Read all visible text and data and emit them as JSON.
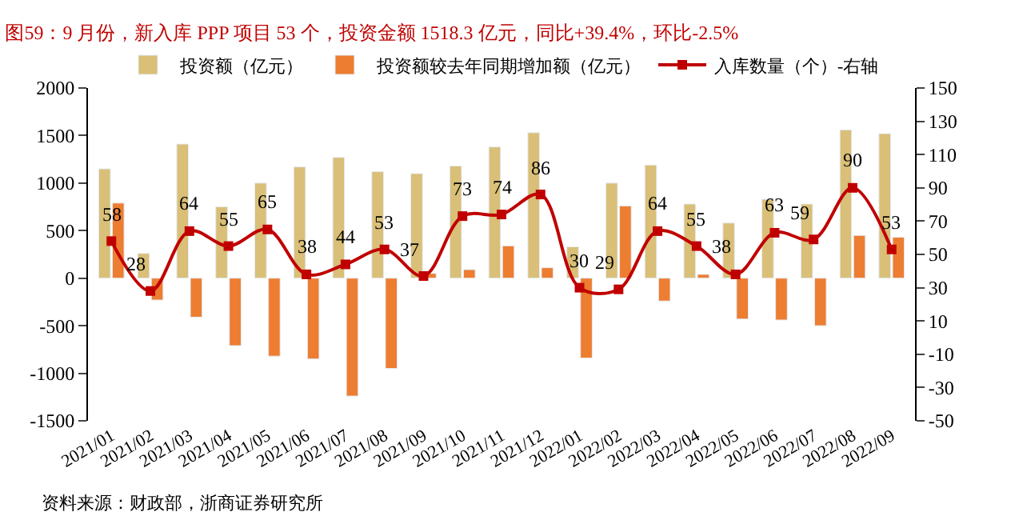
{
  "chart_data": {
    "type": "bar",
    "title": "图59：9 月份，新入库 PPP 项目 53 个，投资金额 1518.3 亿元，同比+39.4%，环比-2.5%",
    "categories": [
      "2021/01",
      "2021/02",
      "2021/03",
      "2021/04",
      "2021/05",
      "2021/06",
      "2021/07",
      "2021/08",
      "2021/09",
      "2021/10",
      "2021/11",
      "2021/12",
      "2022/01",
      "2022/02",
      "2022/03",
      "2022/04",
      "2022/05",
      "2022/06",
      "2022/07",
      "2022/08",
      "2022/09"
    ],
    "series": [
      {
        "name": "投资额（亿元）",
        "color": "#d9bf77",
        "values": [
          1150,
          260,
          1410,
          750,
          1000,
          1170,
          1270,
          1120,
          1100,
          1180,
          1380,
          1530,
          330,
          1000,
          1190,
          780,
          580,
          830,
          780,
          1560,
          1520
        ]
      },
      {
        "name": "投资额较去年同期增加额（亿元）",
        "color": "#ed7d31",
        "values": [
          790,
          -230,
          -410,
          -710,
          -820,
          -850,
          -1240,
          -950,
          50,
          90,
          340,
          110,
          -840,
          760,
          -240,
          40,
          -430,
          -440,
          -500,
          450,
          430
        ]
      },
      {
        "name": "入库数量（个）-右轴",
        "type": "line",
        "axis": "y2",
        "color": "#c00000",
        "marker": "square",
        "values": [
          58,
          28,
          64,
          55,
          65,
          38,
          44,
          53,
          37,
          73,
          74,
          86,
          30,
          29,
          64,
          55,
          38,
          63,
          59,
          90,
          53
        ],
        "value_labels": [
          "58",
          "28",
          "64",
          "55",
          "65",
          "38",
          "44",
          "53",
          "37",
          "73",
          "74",
          "86",
          "30",
          "29",
          "64",
          "55",
          "38",
          "63",
          "59",
          "90",
          "53"
        ]
      }
    ],
    "ylim": [
      -1500,
      2000
    ],
    "yticks": [
      -1500,
      -1000,
      -500,
      0,
      500,
      1000,
      1500,
      2000
    ],
    "y2lim": [
      -50,
      150
    ],
    "y2ticks": [
      -50,
      -30,
      -10,
      10,
      30,
      50,
      70,
      90,
      110,
      130,
      150
    ],
    "legend": "top",
    "annotations": [
      "资料来源：财政部，浙商证券研究所"
    ]
  }
}
